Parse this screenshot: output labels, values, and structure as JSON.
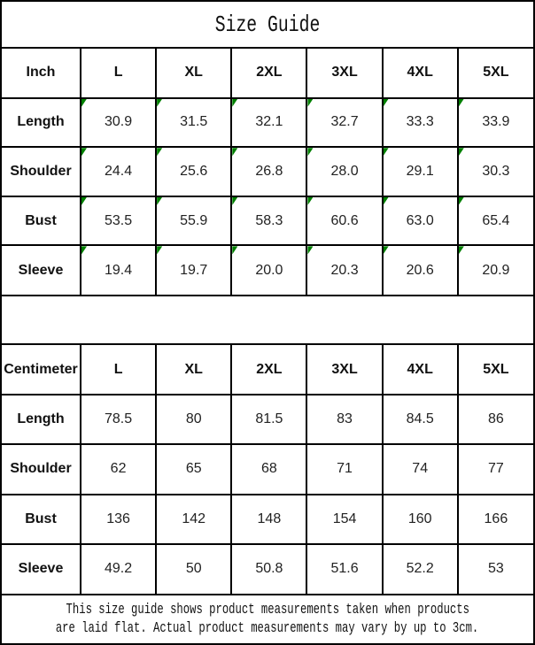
{
  "page_title": "Size Guide",
  "chart_data": [
    {
      "type": "table",
      "title": "Size Guide",
      "unit": "Inch",
      "columns": [
        "Inch",
        "L",
        "XL",
        "2XL",
        "3XL",
        "4XL",
        "5XL"
      ],
      "rows": [
        {
          "label": "Length",
          "values": [
            "30.9",
            "31.5",
            "32.1",
            "32.7",
            "33.3",
            "33.9"
          ]
        },
        {
          "label": "Shoulder",
          "values": [
            "24.4",
            "25.6",
            "26.8",
            "28.0",
            "29.1",
            "30.3"
          ]
        },
        {
          "label": "Bust",
          "values": [
            "53.5",
            "55.9",
            "58.3",
            "60.6",
            "63.0",
            "65.4"
          ]
        },
        {
          "label": "Sleeve",
          "values": [
            "19.4",
            "19.7",
            "20.0",
            "20.3",
            "20.6",
            "20.9"
          ]
        }
      ],
      "cell_marker": "green-triangle-top-left"
    },
    {
      "type": "table",
      "unit": "Centimeter",
      "columns": [
        "Centimeter",
        "L",
        "XL",
        "2XL",
        "3XL",
        "4XL",
        "5XL"
      ],
      "rows": [
        {
          "label": "Length",
          "values": [
            "78.5",
            "80",
            "81.5",
            "83",
            "84.5",
            "86"
          ]
        },
        {
          "label": "Shoulder",
          "values": [
            "62",
            "65",
            "68",
            "71",
            "74",
            "77"
          ]
        },
        {
          "label": "Bust",
          "values": [
            "136",
            "142",
            "148",
            "154",
            "160",
            "166"
          ]
        },
        {
          "label": "Sleeve",
          "values": [
            "49.2",
            "50",
            "50.8",
            "51.6",
            "52.2",
            "53"
          ]
        }
      ],
      "cell_marker": "none"
    }
  ],
  "footer": {
    "line1": "This size guide shows product measurements taken when products",
    "line2": "are laid flat. Actual product measurements may vary by up to 3cm."
  },
  "colors": {
    "background": "#ffffff",
    "border": "#000000",
    "text": "#000000",
    "marker_green": "#008000"
  }
}
